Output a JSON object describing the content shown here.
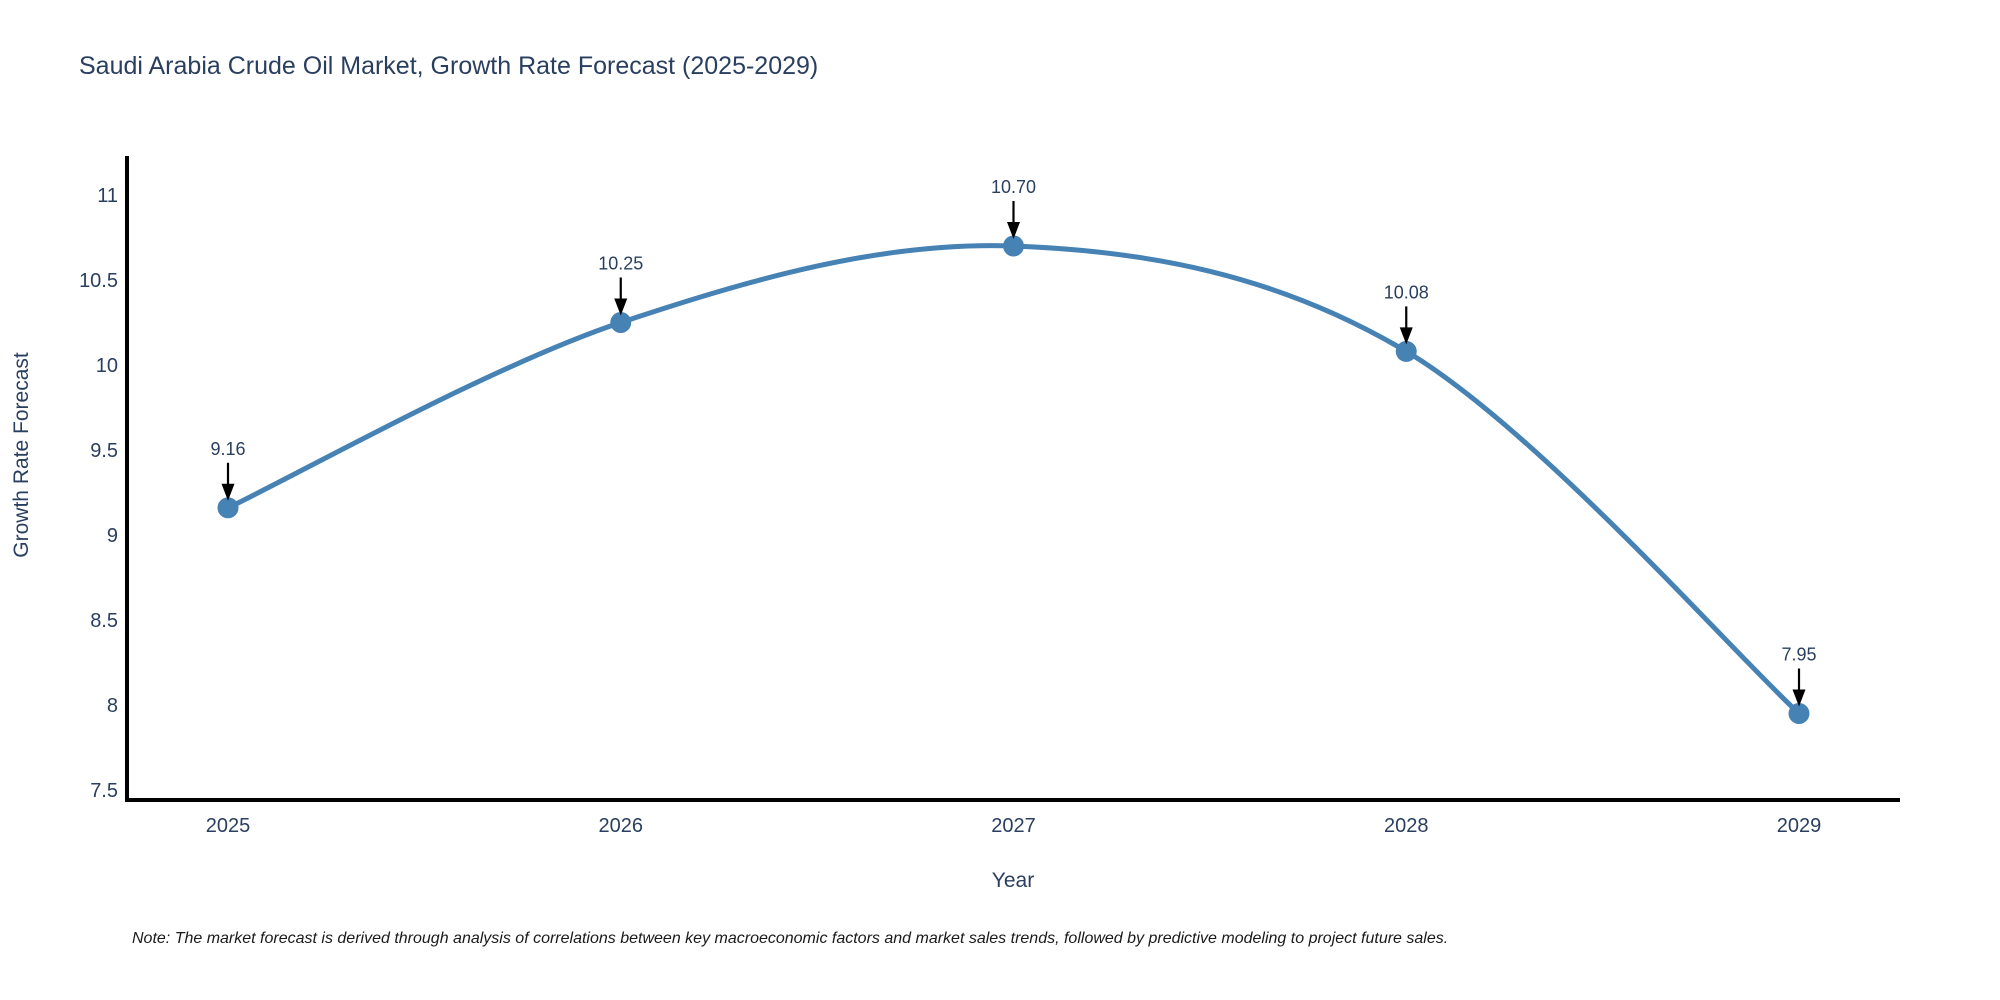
{
  "title": "Saudi Arabia Crude Oil Market, Growth Rate Forecast (2025-2029)",
  "note": "Note: The market forecast is derived through analysis of correlations between key macroeconomic factors and market sales trends, followed by predictive modeling to project future sales.",
  "colors": {
    "line": "#4682b4",
    "marker": "#4682b4",
    "text": "#2a3f5f",
    "axis_line": "#000000",
    "annotation_arrow": "#000000",
    "background": "#ffffff"
  },
  "chart_data": {
    "type": "line",
    "title": "Saudi Arabia Crude Oil Market, Growth Rate Forecast (2025-2029)",
    "x": [
      2025,
      2026,
      2027,
      2028,
      2029
    ],
    "y": [
      9.16,
      10.25,
      10.7,
      10.08,
      7.95
    ],
    "point_labels": [
      "9.16",
      "10.25",
      "10.70",
      "10.08",
      "7.95"
    ],
    "xticklabels": [
      "2025",
      "2026",
      "2027",
      "2028",
      "2029"
    ],
    "yticks": [
      7.5,
      8,
      8.5,
      9,
      9.5,
      10,
      10.5,
      11
    ],
    "ytick_labels": [
      "7.5",
      "8",
      "8.5",
      "9",
      "9.5",
      "10",
      "10.5",
      "11"
    ],
    "xlabel": "Year",
    "ylabel": "Growth Rate Forecast",
    "ylim": [
      7.44,
      11.28
    ],
    "line_shape": "spline",
    "grid": false,
    "legend": false,
    "annotations": "black arrows pointing from value labels down to each data point"
  }
}
